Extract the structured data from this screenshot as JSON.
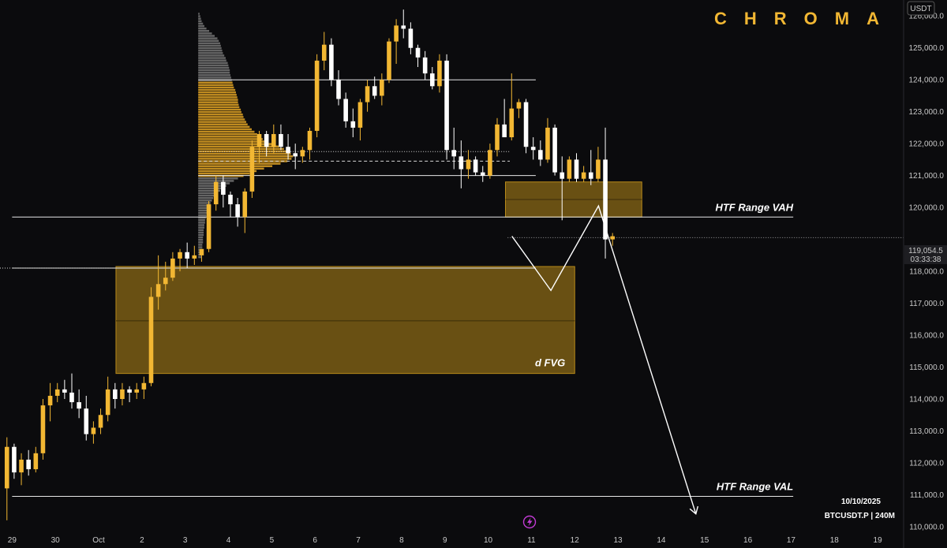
{
  "brand": "CHROMA",
  "currency": "USDT",
  "info": {
    "date": "10/10/2025",
    "symbol": "BTCUSDT.P | 240M"
  },
  "price_tag": {
    "price": "119,054.5",
    "countdown": "03:33:38"
  },
  "colors": {
    "background": "#0b0b0d",
    "bull": "#f2b733",
    "bear": "#ffffff",
    "zone": "#b88a1a",
    "profile_value_area": "#e0a325",
    "profile_outer": "#8a8a8a"
  },
  "icons": [
    "lightning-icon"
  ],
  "chart_data": {
    "type": "candlestick",
    "y_ticks": [
      "126,000.0",
      "125,000.0",
      "124,000.0",
      "123,000.0",
      "122,000.0",
      "121,000.0",
      "120,000.0",
      "118,000.0",
      "117,000.0",
      "116,000.0",
      "115,000.0",
      "114,000.0",
      "113,000.0",
      "112,000.0",
      "111,000.0",
      "110,000.0"
    ],
    "x_ticks": [
      {
        "label": "29",
        "day": 0
      },
      {
        "label": "30",
        "day": 1
      },
      {
        "label": "Oct",
        "day": 2
      },
      {
        "label": "2",
        "day": 3
      },
      {
        "label": "3",
        "day": 4
      },
      {
        "label": "4",
        "day": 5
      },
      {
        "label": "5",
        "day": 6
      },
      {
        "label": "6",
        "day": 7
      },
      {
        "label": "7",
        "day": 8
      },
      {
        "label": "8",
        "day": 9
      },
      {
        "label": "9",
        "day": 10
      },
      {
        "label": "10",
        "day": 11
      },
      {
        "label": "11",
        "day": 12
      },
      {
        "label": "12",
        "day": 13
      },
      {
        "label": "13",
        "day": 14
      },
      {
        "label": "14",
        "day": 15
      },
      {
        "label": "15",
        "day": 16
      },
      {
        "label": "16",
        "day": 17
      },
      {
        "label": "17",
        "day": 18
      },
      {
        "label": "18",
        "day": 19
      },
      {
        "label": "19",
        "day": 20
      }
    ],
    "candles": [
      [
        111200,
        112800,
        110200,
        112500
      ],
      [
        112500,
        112600,
        111500,
        111700
      ],
      [
        111700,
        112300,
        111300,
        112100
      ],
      [
        112100,
        112400,
        111600,
        111800
      ],
      [
        111800,
        112500,
        111700,
        112300
      ],
      [
        112300,
        114000,
        112100,
        113800
      ],
      [
        113800,
        114500,
        113300,
        114100
      ],
      [
        114100,
        114500,
        113900,
        114300
      ],
      [
        114300,
        114600,
        114000,
        114200
      ],
      [
        114200,
        114800,
        113700,
        113900
      ],
      [
        113900,
        114300,
        113400,
        113700
      ],
      [
        113700,
        114100,
        112700,
        112900
      ],
      [
        112900,
        113300,
        112600,
        113100
      ],
      [
        113100,
        113700,
        112900,
        113500
      ],
      [
        113500,
        114700,
        113300,
        114300
      ],
      [
        114300,
        114500,
        113700,
        114000
      ],
      [
        114000,
        114500,
        113800,
        114300
      ],
      [
        114300,
        114400,
        113900,
        114200
      ],
      [
        114200,
        114500,
        114000,
        114300
      ],
      [
        114300,
        114700,
        114000,
        114500
      ],
      [
        114500,
        117500,
        114400,
        117200
      ],
      [
        117200,
        118500,
        116800,
        117600
      ],
      [
        117600,
        118300,
        117400,
        117800
      ],
      [
        117800,
        118600,
        117700,
        118400
      ],
      [
        118400,
        118700,
        118000,
        118600
      ],
      [
        118600,
        118900,
        118100,
        118400
      ],
      [
        118400,
        118800,
        118200,
        118500
      ],
      [
        118500,
        118700,
        118300,
        118700
      ],
      [
        118700,
        120200,
        118600,
        120100
      ],
      [
        120100,
        121000,
        119900,
        120800
      ],
      [
        120800,
        121000,
        120000,
        120400
      ],
      [
        120400,
        120500,
        119700,
        120100
      ],
      [
        120100,
        120300,
        119400,
        119700
      ],
      [
        119700,
        120600,
        119200,
        120500
      ],
      [
        120500,
        122100,
        120300,
        121900
      ],
      [
        121900,
        122400,
        121400,
        122300
      ],
      [
        122300,
        122400,
        121600,
        121900
      ],
      [
        121900,
        122600,
        121700,
        122300
      ],
      [
        122300,
        122600,
        121800,
        121900
      ],
      [
        121900,
        122300,
        121500,
        121700
      ],
      [
        121700,
        122000,
        121200,
        121600
      ],
      [
        121600,
        121900,
        121400,
        121800
      ],
      [
        121800,
        122500,
        121500,
        122400
      ],
      [
        122400,
        124800,
        122200,
        124600
      ],
      [
        124600,
        125500,
        124300,
        125100
      ],
      [
        125100,
        125300,
        123800,
        124000
      ],
      [
        124000,
        124300,
        123200,
        123400
      ],
      [
        123400,
        123600,
        122500,
        122700
      ],
      [
        122700,
        123100,
        122200,
        122500
      ],
      [
        122500,
        123400,
        122100,
        123300
      ],
      [
        123300,
        124000,
        123000,
        123800
      ],
      [
        123800,
        124100,
        123400,
        123500
      ],
      [
        123500,
        124200,
        123200,
        124000
      ],
      [
        124000,
        125300,
        123900,
        125200
      ],
      [
        125200,
        125900,
        124500,
        125700
      ],
      [
        125700,
        126200,
        125300,
        125600
      ],
      [
        125600,
        125800,
        124800,
        125000
      ],
      [
        125000,
        125100,
        124400,
        124700
      ],
      [
        124700,
        124900,
        124000,
        124200
      ],
      [
        124200,
        124400,
        123700,
        123800
      ],
      [
        123800,
        124800,
        123600,
        124600
      ],
      [
        124600,
        124800,
        121500,
        121800
      ],
      [
        121800,
        122500,
        121200,
        121600
      ],
      [
        121600,
        122100,
        120600,
        121200
      ],
      [
        121200,
        121800,
        120900,
        121500
      ],
      [
        121500,
        121600,
        121000,
        121100
      ],
      [
        121100,
        121300,
        120800,
        121000
      ],
      [
        121000,
        122000,
        120900,
        121800
      ],
      [
        121800,
        122800,
        121600,
        122600
      ],
      [
        122600,
        123400,
        122300,
        122200
      ],
      [
        122200,
        124200,
        122100,
        123100
      ],
      [
        123100,
        123400,
        122800,
        123300
      ],
      [
        123300,
        123400,
        121700,
        121900
      ],
      [
        121900,
        122200,
        121500,
        121800
      ],
      [
        121800,
        122100,
        121300,
        121500
      ],
      [
        121500,
        122800,
        121400,
        122500
      ],
      [
        122500,
        122600,
        121000,
        121100
      ],
      [
        121100,
        121600,
        119600,
        120900
      ],
      [
        120900,
        121600,
        120800,
        121500
      ],
      [
        121500,
        121700,
        120800,
        120900
      ],
      [
        120900,
        121300,
        120800,
        121100
      ],
      [
        121100,
        121800,
        120700,
        120900
      ],
      [
        120900,
        121900,
        120800,
        121500
      ],
      [
        121500,
        122500,
        118400,
        119000
      ],
      [
        119000,
        119200,
        118800,
        119100
      ]
    ],
    "candle_spacing_days": 0.1666,
    "volume_profile": {
      "top": 126100,
      "bottom": 118400,
      "value_area_high": 124000,
      "value_area_low": 121000,
      "start_day": 4.3,
      "poc": 121800,
      "rows": [
        2,
        3,
        4,
        5,
        7,
        9,
        12,
        16,
        20,
        24,
        28,
        30,
        32,
        33,
        34,
        35,
        36,
        38,
        40,
        41,
        43,
        44,
        45,
        46,
        46,
        47,
        48,
        49,
        50,
        51,
        52,
        54,
        55,
        56,
        57,
        58,
        58,
        59,
        60,
        62,
        63,
        65,
        66,
        68,
        70,
        72,
        75,
        78,
        82,
        86,
        90,
        94,
        100,
        108,
        118,
        125,
        130,
        135,
        138,
        136,
        130,
        120,
        108,
        96,
        85,
        75,
        66,
        58,
        52,
        46,
        41,
        36,
        32,
        28,
        25,
        22,
        20,
        18,
        16,
        15,
        14,
        13,
        12,
        11,
        10,
        10,
        9,
        9,
        8,
        8,
        8,
        7,
        7,
        7,
        6,
        6,
        6,
        6,
        5,
        5
      ]
    },
    "levels": [
      {
        "name": "HTF Range VAH",
        "price": 119700,
        "from_day": 0,
        "to_day": 18.05
      },
      {
        "name": "HTF Range VAL",
        "price": 110950,
        "from_day": 0,
        "to_day": 18.05
      },
      {
        "name": "",
        "price": 124000,
        "from_day": 4.3,
        "to_day": 12.1
      },
      {
        "name": "",
        "price": 121000,
        "from_day": 4.3,
        "to_day": 12.1
      },
      {
        "name": "",
        "price": 118100,
        "from_day": 0,
        "to_day": 12.1
      }
    ],
    "zones": [
      {
        "name": "d FVG",
        "top": 118150,
        "bottom": 114800,
        "mid": 116450,
        "from_day": 2.4,
        "to_day": 13
      },
      {
        "name": "",
        "top": 120800,
        "bottom": 119700,
        "mid": 120250,
        "from_day": 11.4,
        "to_day": 14.55
      }
    ],
    "projection_path": [
      {
        "day": 11.55,
        "price": 119100
      },
      {
        "day": 12.45,
        "price": 117400
      },
      {
        "day": 13.55,
        "price": 120050
      },
      {
        "day": 15.8,
        "price": 110400
      }
    ],
    "dotted_levels": [
      121750,
      121450,
      118100
    ],
    "ylim": [
      109900,
      126500
    ],
    "xlim": [
      -0.28,
      20.6
    ]
  }
}
